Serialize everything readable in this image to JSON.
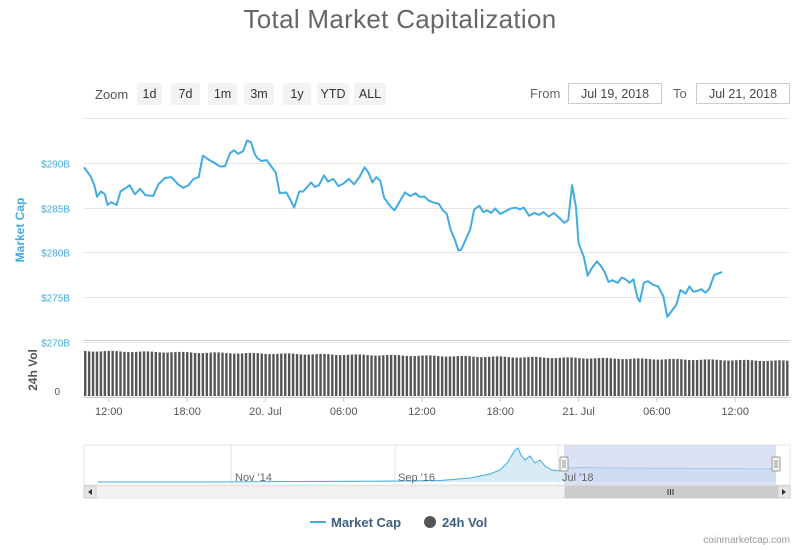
{
  "page": {
    "title": "Total Market Capitalization",
    "credit": "coinmarketcap.com"
  },
  "zoom": {
    "label": "Zoom",
    "buttons": [
      "1d",
      "7d",
      "1m",
      "3m",
      "1y",
      "YTD",
      "ALL"
    ]
  },
  "range": {
    "from_label": "From",
    "from_value": "Jul 19, 2018",
    "to_label": "To",
    "to_value": "Jul 21, 2018"
  },
  "legend": {
    "market_cap": "Market Cap",
    "volume": "24h Vol"
  },
  "colors": {
    "line": "#41ace0",
    "volume": "#555555",
    "grid": "#e6e6e6",
    "axis_text": "#41ace0",
    "navigator_mask": "#cdd6ee"
  },
  "chart_data": {
    "type": "line",
    "ylabel": "Market Cap",
    "y_ticks": [
      "$290B",
      "$285B",
      "$280B",
      "$275B",
      "$270B"
    ],
    "y_tick_values": [
      290,
      285,
      280,
      275,
      270
    ],
    "ylim": [
      270,
      295
    ],
    "x_ticks": [
      {
        "label": "12:00",
        "t": 12
      },
      {
        "label": "18:00",
        "t": 18
      },
      {
        "label": "20. Jul",
        "t": 24
      },
      {
        "label": "06:00",
        "t": 30
      },
      {
        "label": "12:00",
        "t": 36
      },
      {
        "label": "18:00",
        "t": 42
      },
      {
        "label": "21. Jul",
        "t": 48
      },
      {
        "label": "06:00",
        "t": 54
      },
      {
        "label": "12:00",
        "t": 60
      }
    ],
    "xlim": [
      10.1,
      64.2
    ],
    "grid": true,
    "series": [
      {
        "name": "Market Cap",
        "points": [
          [
            10.1,
            289.5
          ],
          [
            10.6,
            288.5
          ],
          [
            10.9,
            287.5
          ],
          [
            11.1,
            286.2
          ],
          [
            11.4,
            286.8
          ],
          [
            11.7,
            286.5
          ],
          [
            11.9,
            285.3
          ],
          [
            12.2,
            285.6
          ],
          [
            12.6,
            285.3
          ],
          [
            12.9,
            286.8
          ],
          [
            13.3,
            287.2
          ],
          [
            13.6,
            287.5
          ],
          [
            14.0,
            286.5
          ],
          [
            14.4,
            287.1
          ],
          [
            14.8,
            286.4
          ],
          [
            15.4,
            286.3
          ],
          [
            15.8,
            287.6
          ],
          [
            16.3,
            288.3
          ],
          [
            16.8,
            288.4
          ],
          [
            17.3,
            287.6
          ],
          [
            17.7,
            287.2
          ],
          [
            18.1,
            287.5
          ],
          [
            18.5,
            288.2
          ],
          [
            18.9,
            288.4
          ],
          [
            19.2,
            290.8
          ],
          [
            19.7,
            290.3
          ],
          [
            20.1,
            290.0
          ],
          [
            20.5,
            289.6
          ],
          [
            20.9,
            289.6
          ],
          [
            21.3,
            291.1
          ],
          [
            21.6,
            291.4
          ],
          [
            21.9,
            291.0
          ],
          [
            22.3,
            291.3
          ],
          [
            22.6,
            292.5
          ],
          [
            22.9,
            292.3
          ],
          [
            23.2,
            290.9
          ],
          [
            23.4,
            290.5
          ],
          [
            23.7,
            290.2
          ],
          [
            24.1,
            290.3
          ],
          [
            24.4,
            289.7
          ],
          [
            24.8,
            288.9
          ],
          [
            25.1,
            286.6
          ],
          [
            25.6,
            286.7
          ],
          [
            25.9,
            285.9
          ],
          [
            26.2,
            285.0
          ],
          [
            26.6,
            286.8
          ],
          [
            26.9,
            286.8
          ],
          [
            27.2,
            287.3
          ],
          [
            27.5,
            287.8
          ],
          [
            27.8,
            287.3
          ],
          [
            28.1,
            287.5
          ],
          [
            28.5,
            288.6
          ],
          [
            28.8,
            287.9
          ],
          [
            29.2,
            288.2
          ],
          [
            29.6,
            287.4
          ],
          [
            30.0,
            287.7
          ],
          [
            30.4,
            288.2
          ],
          [
            30.8,
            287.6
          ],
          [
            31.2,
            288.4
          ],
          [
            31.6,
            289.5
          ],
          [
            31.9,
            288.9
          ],
          [
            32.2,
            287.8
          ],
          [
            32.5,
            288.4
          ],
          [
            32.8,
            288.0
          ],
          [
            33.1,
            286.1
          ],
          [
            33.6,
            285.1
          ],
          [
            33.9,
            284.7
          ],
          [
            34.3,
            285.7
          ],
          [
            34.7,
            286.7
          ],
          [
            35.1,
            286.3
          ],
          [
            35.5,
            286.6
          ],
          [
            35.8,
            286.2
          ],
          [
            36.2,
            286.2
          ],
          [
            36.5,
            285.8
          ],
          [
            36.8,
            285.6
          ],
          [
            37.3,
            285.4
          ],
          [
            37.6,
            284.7
          ],
          [
            37.9,
            284.3
          ],
          [
            38.2,
            282.5
          ],
          [
            38.5,
            281.5
          ],
          [
            38.8,
            280.2
          ],
          [
            39.0,
            280.3
          ],
          [
            39.4,
            281.6
          ],
          [
            39.7,
            282.6
          ],
          [
            40.0,
            284.8
          ],
          [
            40.4,
            285.2
          ],
          [
            40.7,
            284.5
          ],
          [
            41.0,
            284.7
          ],
          [
            41.3,
            284.4
          ],
          [
            41.6,
            284.9
          ],
          [
            42.0,
            284.3
          ],
          [
            42.4,
            284.6
          ],
          [
            42.8,
            284.9
          ],
          [
            43.2,
            285.0
          ],
          [
            43.5,
            284.8
          ],
          [
            43.8,
            285.0
          ],
          [
            44.2,
            284.1
          ],
          [
            44.6,
            284.4
          ],
          [
            45.0,
            284.2
          ],
          [
            45.3,
            284.5
          ],
          [
            45.7,
            284.0
          ],
          [
            46.1,
            284.4
          ],
          [
            46.5,
            283.9
          ],
          [
            46.9,
            283.3
          ],
          [
            47.2,
            283.6
          ],
          [
            47.5,
            287.5
          ],
          [
            47.8,
            285.0
          ],
          [
            48.0,
            281.0
          ],
          [
            48.4,
            279.5
          ],
          [
            48.7,
            277.4
          ],
          [
            49.0,
            278.2
          ],
          [
            49.4,
            279.0
          ],
          [
            49.7,
            278.5
          ],
          [
            50.0,
            277.8
          ],
          [
            50.3,
            276.7
          ],
          [
            50.6,
            276.9
          ],
          [
            51.0,
            276.6
          ],
          [
            51.3,
            277.2
          ],
          [
            51.6,
            277.0
          ],
          [
            51.9,
            276.6
          ],
          [
            52.2,
            277.0
          ],
          [
            52.5,
            275.0
          ],
          [
            52.7,
            274.5
          ],
          [
            53.0,
            276.6
          ],
          [
            53.3,
            276.8
          ],
          [
            53.7,
            276.4
          ],
          [
            54.1,
            276.2
          ],
          [
            54.5,
            275.1
          ],
          [
            54.8,
            272.8
          ],
          [
            55.2,
            273.6
          ],
          [
            55.5,
            274.2
          ],
          [
            55.8,
            275.8
          ],
          [
            56.2,
            275.4
          ],
          [
            56.5,
            276.2
          ],
          [
            56.8,
            275.6
          ],
          [
            57.1,
            275.7
          ],
          [
            57.4,
            275.9
          ],
          [
            57.7,
            275.5
          ],
          [
            58.0,
            275.9
          ],
          [
            58.4,
            277.5
          ],
          [
            58.8,
            277.7
          ],
          [
            59.0,
            277.8
          ]
        ]
      },
      {
        "name": "24h Vol"
      }
    ],
    "navigator": {
      "labels": [
        "Nov '14",
        "Sep '16",
        "Jul '18"
      ]
    }
  }
}
